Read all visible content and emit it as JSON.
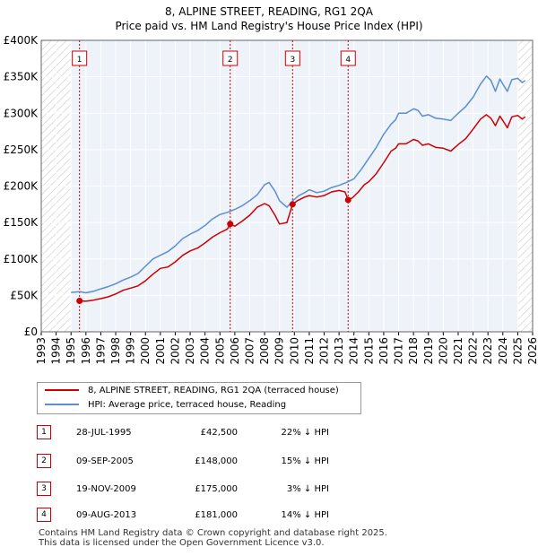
{
  "title": "8, ALPINE STREET, READING, RG1 2QA",
  "subtitle": "Price paid vs. HM Land Registry's House Price Index (HPI)",
  "chart_data": {
    "type": "line",
    "x_range": [
      1993.0,
      2026.0
    ],
    "y_range": [
      0,
      400000
    ],
    "y_ticks": [
      {
        "value": 0,
        "label": "£0"
      },
      {
        "value": 50000,
        "label": "£50K"
      },
      {
        "value": 100000,
        "label": "£100K"
      },
      {
        "value": 150000,
        "label": "£150K"
      },
      {
        "value": 200000,
        "label": "£200K"
      },
      {
        "value": 250000,
        "label": "£250K"
      },
      {
        "value": 300000,
        "label": "£300K"
      },
      {
        "value": 350000,
        "label": "£350K"
      },
      {
        "value": 400000,
        "label": "£400K"
      }
    ],
    "x_ticks": [
      "1993",
      "1994",
      "1995",
      "1996",
      "1997",
      "1998",
      "1999",
      "2000",
      "2001",
      "2002",
      "2003",
      "2004",
      "2005",
      "2006",
      "2007",
      "2008",
      "2009",
      "2010",
      "2011",
      "2012",
      "2013",
      "2014",
      "2015",
      "2016",
      "2017",
      "2018",
      "2019",
      "2020",
      "2021",
      "2022",
      "2023",
      "2024",
      "2025",
      "2026"
    ],
    "hatch_regions": [
      [
        1993.0,
        1995.0
      ],
      [
        2025.0,
        2026.0
      ]
    ],
    "series": [
      {
        "name": "8, ALPINE STREET, READING, RG1 2QA (terraced house)",
        "color": "#cc0000",
        "points": [
          [
            1995.57,
            42500
          ],
          [
            1996.0,
            42000
          ],
          [
            1996.5,
            43500
          ],
          [
            1997.0,
            45500
          ],
          [
            1997.5,
            48000
          ],
          [
            1998.0,
            52000
          ],
          [
            1998.5,
            57000
          ],
          [
            1999.0,
            60000
          ],
          [
            1999.5,
            63000
          ],
          [
            2000.0,
            70000
          ],
          [
            2000.5,
            79000
          ],
          [
            2001.0,
            87000
          ],
          [
            2001.5,
            89000
          ],
          [
            2002.0,
            96000
          ],
          [
            2002.5,
            105000
          ],
          [
            2003.0,
            111000
          ],
          [
            2003.5,
            115000
          ],
          [
            2004.0,
            122000
          ],
          [
            2004.5,
            130000
          ],
          [
            2005.0,
            136000
          ],
          [
            2005.5,
            141000
          ],
          [
            2005.69,
            148000
          ],
          [
            2006.0,
            145000
          ],
          [
            2006.5,
            152000
          ],
          [
            2007.0,
            160000
          ],
          [
            2007.5,
            171000
          ],
          [
            2008.0,
            176000
          ],
          [
            2008.3,
            173000
          ],
          [
            2008.7,
            160000
          ],
          [
            2009.0,
            148000
          ],
          [
            2009.5,
            150000
          ],
          [
            2009.88,
            175000
          ],
          [
            2010.2,
            180000
          ],
          [
            2010.7,
            185000
          ],
          [
            2011.0,
            187000
          ],
          [
            2011.5,
            185000
          ],
          [
            2012.0,
            187000
          ],
          [
            2012.5,
            192000
          ],
          [
            2013.0,
            194000
          ],
          [
            2013.4,
            192000
          ],
          [
            2013.61,
            181000
          ],
          [
            2013.9,
            184000
          ],
          [
            2014.3,
            192000
          ],
          [
            2014.7,
            202000
          ],
          [
            2015.0,
            206000
          ],
          [
            2015.5,
            217000
          ],
          [
            2016.0,
            232000
          ],
          [
            2016.5,
            248000
          ],
          [
            2016.8,
            252000
          ],
          [
            2017.0,
            258000
          ],
          [
            2017.5,
            258000
          ],
          [
            2018.0,
            264000
          ],
          [
            2018.3,
            262000
          ],
          [
            2018.6,
            256000
          ],
          [
            2019.0,
            258000
          ],
          [
            2019.5,
            253000
          ],
          [
            2020.0,
            252000
          ],
          [
            2020.5,
            248000
          ],
          [
            2021.0,
            257000
          ],
          [
            2021.5,
            265000
          ],
          [
            2022.0,
            278000
          ],
          [
            2022.5,
            292000
          ],
          [
            2022.9,
            298000
          ],
          [
            2023.2,
            293000
          ],
          [
            2023.5,
            283000
          ],
          [
            2023.8,
            296000
          ],
          [
            2024.0,
            290000
          ],
          [
            2024.3,
            280000
          ],
          [
            2024.6,
            295000
          ],
          [
            2025.0,
            297000
          ],
          [
            2025.3,
            292000
          ],
          [
            2025.5,
            295000
          ]
        ]
      },
      {
        "name": "HPI: Average price, terraced house, Reading",
        "color": "#5b8fd0",
        "points": [
          [
            1995.0,
            54000
          ],
          [
            1995.6,
            55000
          ],
          [
            1996.0,
            53500
          ],
          [
            1996.5,
            55500
          ],
          [
            1997.0,
            59000
          ],
          [
            1997.5,
            62000
          ],
          [
            1998.0,
            66000
          ],
          [
            1998.5,
            71000
          ],
          [
            1999.0,
            75000
          ],
          [
            1999.5,
            80000
          ],
          [
            2000.0,
            90000
          ],
          [
            2000.5,
            100000
          ],
          [
            2001.0,
            105000
          ],
          [
            2001.5,
            110000
          ],
          [
            2002.0,
            118000
          ],
          [
            2002.5,
            128000
          ],
          [
            2003.0,
            134000
          ],
          [
            2003.5,
            139000
          ],
          [
            2004.0,
            146000
          ],
          [
            2004.5,
            155000
          ],
          [
            2005.0,
            161000
          ],
          [
            2005.5,
            164000
          ],
          [
            2006.0,
            168000
          ],
          [
            2006.5,
            173000
          ],
          [
            2007.0,
            180000
          ],
          [
            2007.5,
            188000
          ],
          [
            2008.0,
            202000
          ],
          [
            2008.3,
            205000
          ],
          [
            2008.7,
            193000
          ],
          [
            2009.0,
            180000
          ],
          [
            2009.5,
            171000
          ],
          [
            2009.9,
            180000
          ],
          [
            2010.3,
            187000
          ],
          [
            2010.7,
            191000
          ],
          [
            2011.0,
            195000
          ],
          [
            2011.5,
            191000
          ],
          [
            2012.0,
            193000
          ],
          [
            2012.5,
            198000
          ],
          [
            2013.0,
            201000
          ],
          [
            2013.5,
            205000
          ],
          [
            2014.0,
            210000
          ],
          [
            2014.5,
            223000
          ],
          [
            2015.0,
            238000
          ],
          [
            2015.5,
            253000
          ],
          [
            2016.0,
            271000
          ],
          [
            2016.5,
            285000
          ],
          [
            2016.8,
            291000
          ],
          [
            2017.0,
            300000
          ],
          [
            2017.5,
            300000
          ],
          [
            2018.0,
            306000
          ],
          [
            2018.3,
            304000
          ],
          [
            2018.6,
            296000
          ],
          [
            2019.0,
            298000
          ],
          [
            2019.5,
            293000
          ],
          [
            2020.0,
            292000
          ],
          [
            2020.5,
            290000
          ],
          [
            2021.0,
            300000
          ],
          [
            2021.5,
            309000
          ],
          [
            2022.0,
            322000
          ],
          [
            2022.5,
            340000
          ],
          [
            2022.9,
            351000
          ],
          [
            2023.2,
            345000
          ],
          [
            2023.5,
            330000
          ],
          [
            2023.8,
            347000
          ],
          [
            2024.0,
            340000
          ],
          [
            2024.3,
            330000
          ],
          [
            2024.6,
            346000
          ],
          [
            2025.0,
            348000
          ],
          [
            2025.3,
            342000
          ],
          [
            2025.5,
            345000
          ]
        ]
      }
    ],
    "sales": [
      {
        "num": "1",
        "x": 1995.57,
        "price": 42500
      },
      {
        "num": "2",
        "x": 2005.69,
        "price": 148000
      },
      {
        "num": "3",
        "x": 2009.88,
        "price": 175000
      },
      {
        "num": "4",
        "x": 2013.61,
        "price": 181000
      }
    ]
  },
  "legend": {
    "property_label": "8, ALPINE STREET, READING, RG1 2QA (terraced house)",
    "hpi_label": "HPI: Average price, terraced house, Reading"
  },
  "transactions": [
    {
      "num": "1",
      "date": "28-JUL-1995",
      "price": "£42,500",
      "hpi": "22% ↓ HPI"
    },
    {
      "num": "2",
      "date": "09-SEP-2005",
      "price": "£148,000",
      "hpi": "15% ↓ HPI"
    },
    {
      "num": "3",
      "date": "19-NOV-2009",
      "price": "£175,000",
      "hpi": "3% ↓ HPI"
    },
    {
      "num": "4",
      "date": "09-AUG-2013",
      "price": "£181,000",
      "hpi": "14% ↓ HPI"
    }
  ],
  "footer": {
    "line1": "Contains HM Land Registry data © Crown copyright and database right 2025.",
    "line2": "This data is licensed under the Open Government Licence v3.0."
  },
  "colors": {
    "property": "#cc0000",
    "hpi": "#5b8fd0",
    "plot_bg": "#eef2f9"
  }
}
